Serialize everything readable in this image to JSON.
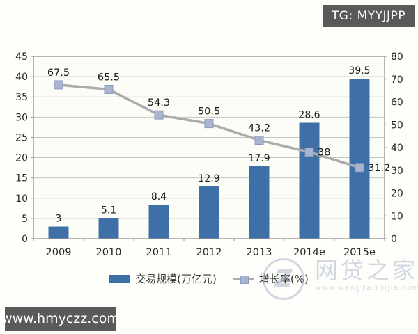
{
  "overlays": {
    "badge": {
      "text": "TG: MYYJJPP",
      "bg_color": "#595959",
      "text_color": "#fafafa"
    },
    "banner": {
      "text": "www.hmyczz.com",
      "bg_color": "#5a5a5a",
      "text_color": "#ffffff"
    },
    "watermark": {
      "site_name": "网贷之家",
      "site_url": "www.wangdaizhijia.com",
      "logo_glyph": "Z",
      "color": "#aeb8cc"
    }
  },
  "chart_data": {
    "type": "combo-bar-line",
    "title": "",
    "categories": [
      "2009",
      "2010",
      "2011",
      "2012",
      "2013",
      "2014e",
      "2015e"
    ],
    "series": [
      {
        "name": "交易规模(万亿元)",
        "type": "bar",
        "axis": "left",
        "values": [
          3,
          5.1,
          8.4,
          12.9,
          17.9,
          28.6,
          39.5
        ],
        "color": "#3E6FA6"
      },
      {
        "name": "增长率(%)",
        "type": "line",
        "axis": "right",
        "values": [
          67.5,
          65.5,
          54.3,
          50.5,
          43.2,
          38,
          31.2
        ],
        "label_side": [
          "top",
          "top",
          "top",
          "top",
          "top",
          "right",
          "right"
        ],
        "line_color": "#ABABAB",
        "marker_fill": "#A9B4D0",
        "marker_stroke": "#8C9CC0"
      }
    ],
    "left_axis": {
      "min": 0,
      "max": 45,
      "step": 5,
      "ticks": [
        "0",
        "5",
        "10",
        "15",
        "20",
        "25",
        "30",
        "35",
        "40",
        "45"
      ]
    },
    "right_axis": {
      "min": 0,
      "max": 80,
      "step": 10,
      "ticks": [
        "0",
        "10",
        "20",
        "30",
        "40",
        "50",
        "60",
        "70",
        "80"
      ]
    },
    "grid": true,
    "legend_position": "bottom",
    "colors": {
      "grid": "#C6C6C6",
      "axis_border": "#909090",
      "tick_text": "#262626",
      "label_text": "#1A1A1A",
      "plot_bg": "#FDFDF7"
    }
  }
}
